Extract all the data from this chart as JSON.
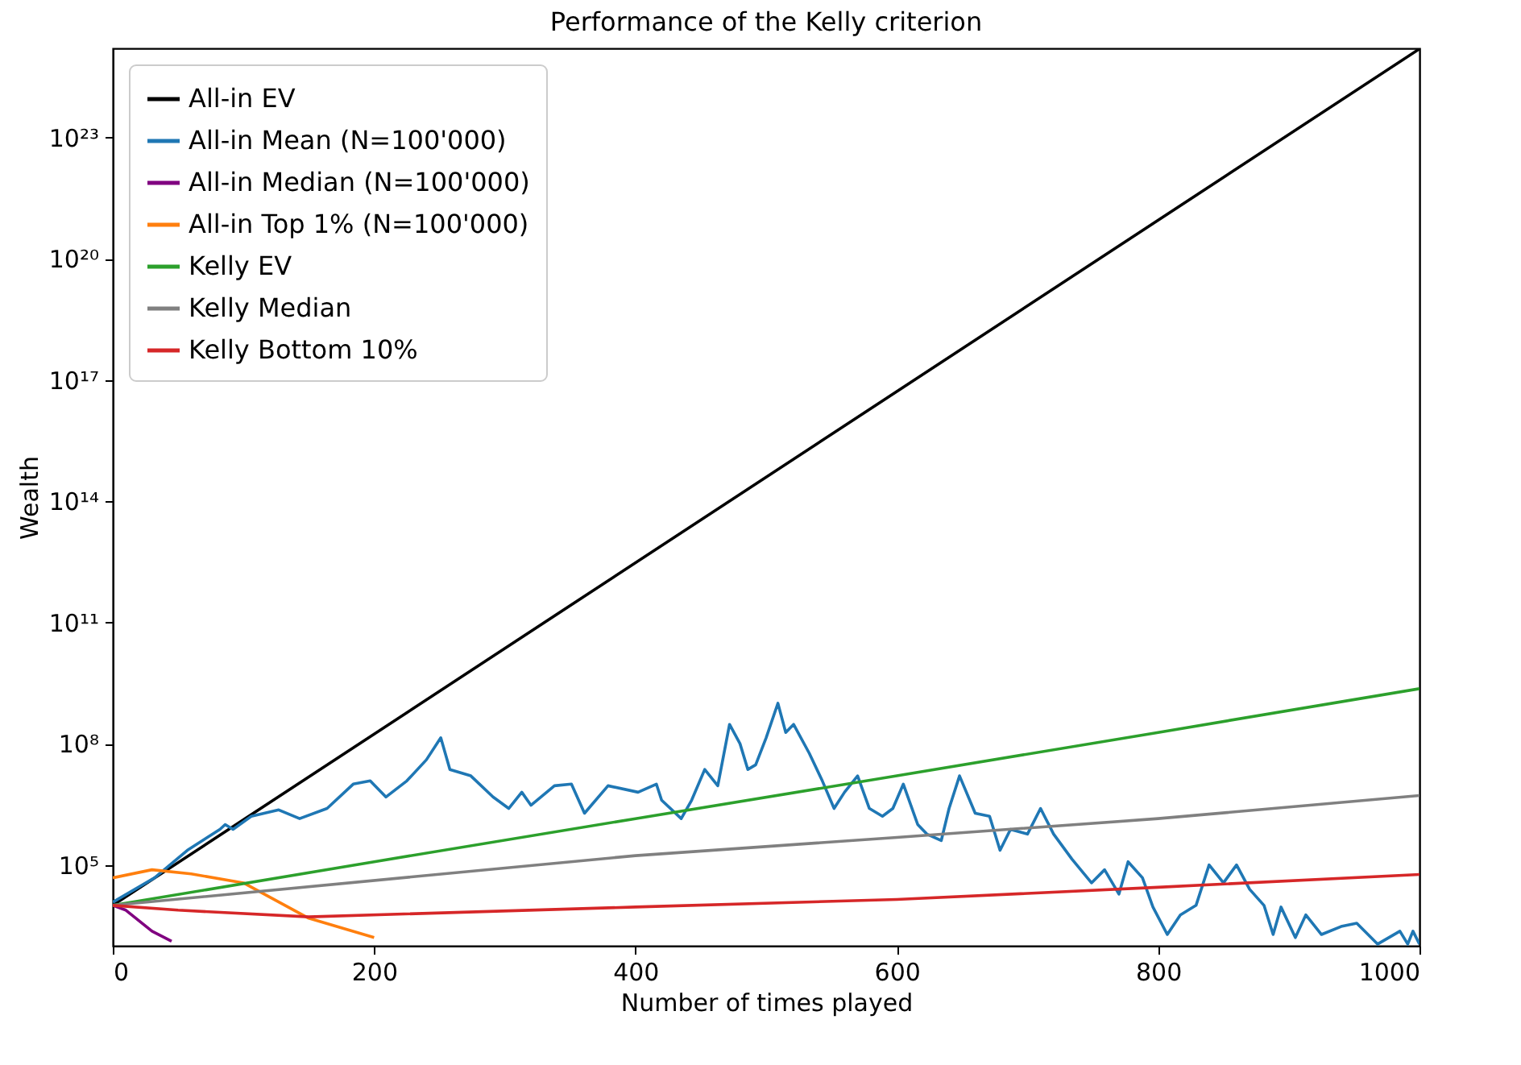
{
  "chart_data": {
    "type": "line",
    "title": "Performance of the Kelly criterion",
    "xlabel": "Number of times played",
    "ylabel": "Wealth",
    "log": "y",
    "grid": false,
    "legend": "top left",
    "xlim": [
      0,
      1000
    ],
    "xticks": [
      0,
      200,
      400,
      600,
      800,
      1000
    ],
    "ylim": [
      1000,
      1.6e+25
    ],
    "yticks": [
      {
        "value": 100000.0,
        "label": "10⁵"
      },
      {
        "value": 100000000.0,
        "label": "10⁸"
      },
      {
        "value": 100000000000.0,
        "label": "10¹¹"
      },
      {
        "value": 100000000000000.0,
        "label": "10¹⁴"
      },
      {
        "value": 1e+17,
        "label": "10¹⁷"
      },
      {
        "value": 1e+20,
        "label": "10²⁰"
      },
      {
        "value": 1e+23,
        "label": "10²³"
      }
    ],
    "series": [
      {
        "name": "All-in EV",
        "color": "#000000",
        "x": [
          0,
          1000
        ],
        "values": [
          10000,
          1.55e+25
        ]
      },
      {
        "name": "All-in Mean (N=100'000)",
        "color": "#1f77b4",
        "x": [
          0,
          32,
          57,
          82,
          86,
          92,
          106,
          127,
          143,
          164,
          184,
          197,
          209,
          225,
          240,
          251,
          258,
          274,
          291,
          303,
          313,
          320,
          338,
          351,
          361,
          379,
          402,
          416,
          420,
          435,
          443,
          453,
          463,
          472,
          480,
          486,
          492,
          500,
          509,
          515,
          521,
          533,
          543,
          552,
          560,
          570,
          579,
          589,
          597,
          605,
          616,
          623,
          634,
          640,
          648,
          660,
          671,
          679,
          687,
          700,
          710,
          720,
          734,
          749,
          759,
          770,
          777,
          788,
          796,
          807,
          817,
          829,
          839,
          850,
          860,
          870,
          881,
          888,
          894,
          905,
          913,
          925,
          940,
          952,
          968,
          985,
          991,
          995,
          1000
        ],
        "values": [
          12000.0,
          48000.0,
          230000.0,
          760000.0,
          1000000.0,
          760000.0,
          1600000.0,
          2300000.0,
          1400000.0,
          2500000.0,
          10000000.0,
          12000000.0,
          4800000.0,
          12000000.0,
          40000000.0,
          140000000.0,
          23000000.0,
          16000000.0,
          4800000.0,
          2500000.0,
          6300000.0,
          3000000.0,
          9100000.0,
          10000000.0,
          1900000.0,
          9100000.0,
          6300000.0,
          10000000.0,
          4000000.0,
          1400000.0,
          4000000.0,
          23000000.0,
          9100000.0,
          300000000.0,
          100000000.0,
          23000000.0,
          30000000.0,
          140000000.0,
          1000000000.0,
          190000000.0,
          300000000.0,
          58000000.0,
          12000000.0,
          2500000.0,
          6300000.0,
          16000000.0,
          2500000.0,
          1600000.0,
          2500000.0,
          10000000.0,
          1000000.0,
          580000.0,
          400000.0,
          2500000.0,
          16000000.0,
          1900000.0,
          1600000.0,
          230000.0,
          760000.0,
          580000.0,
          2500000.0,
          580000.0,
          140000.0,
          36000.0,
          76000.0,
          19000.0,
          120000.0,
          48000.0,
          9100.0,
          1900.0,
          5800.0,
          10000.0,
          100000.0,
          36000.0,
          100000.0,
          25000.0,
          10000.0,
          1900.0,
          9100.0,
          1600.0,
          5800.0,
          1900.0,
          3000.0,
          3600.0,
          1100.0,
          2300.0,
          1100.0,
          2300.0,
          1100.0
        ]
      },
      {
        "name": "All-in Median (N=100'000)",
        "color": "#800080",
        "x": [
          0,
          10,
          30,
          45
        ],
        "values": [
          10000,
          7600,
          2300,
          1300
        ]
      },
      {
        "name": "All-in Top 1% (N=100'000)",
        "color": "#ff7f0e",
        "x": [
          0,
          30,
          60,
          100,
          150,
          200
        ],
        "values": [
          48000,
          76000,
          60000,
          36000,
          4800,
          1600
        ]
      },
      {
        "name": "Kelly EV",
        "color": "#2ca02c",
        "x": [
          0,
          200,
          400,
          600,
          800,
          1000
        ],
        "values": [
          10000,
          120000.0,
          1400000.0,
          16000000.0,
          190000000.0,
          2300000000.0
        ]
      },
      {
        "name": "Kelly Median",
        "color": "#808080",
        "x": [
          0,
          400,
          600,
          800,
          1000
        ],
        "values": [
          10000,
          170000.0,
          480000.0,
          1400000.0,
          5200000.0
        ]
      },
      {
        "name": "Kelly Bottom 10%",
        "color": "#d62728",
        "x": [
          0,
          50,
          150,
          400,
          600,
          800,
          1000
        ],
        "values": [
          10000,
          7600,
          5200,
          9100,
          14000,
          28000,
          58000
        ]
      }
    ]
  }
}
